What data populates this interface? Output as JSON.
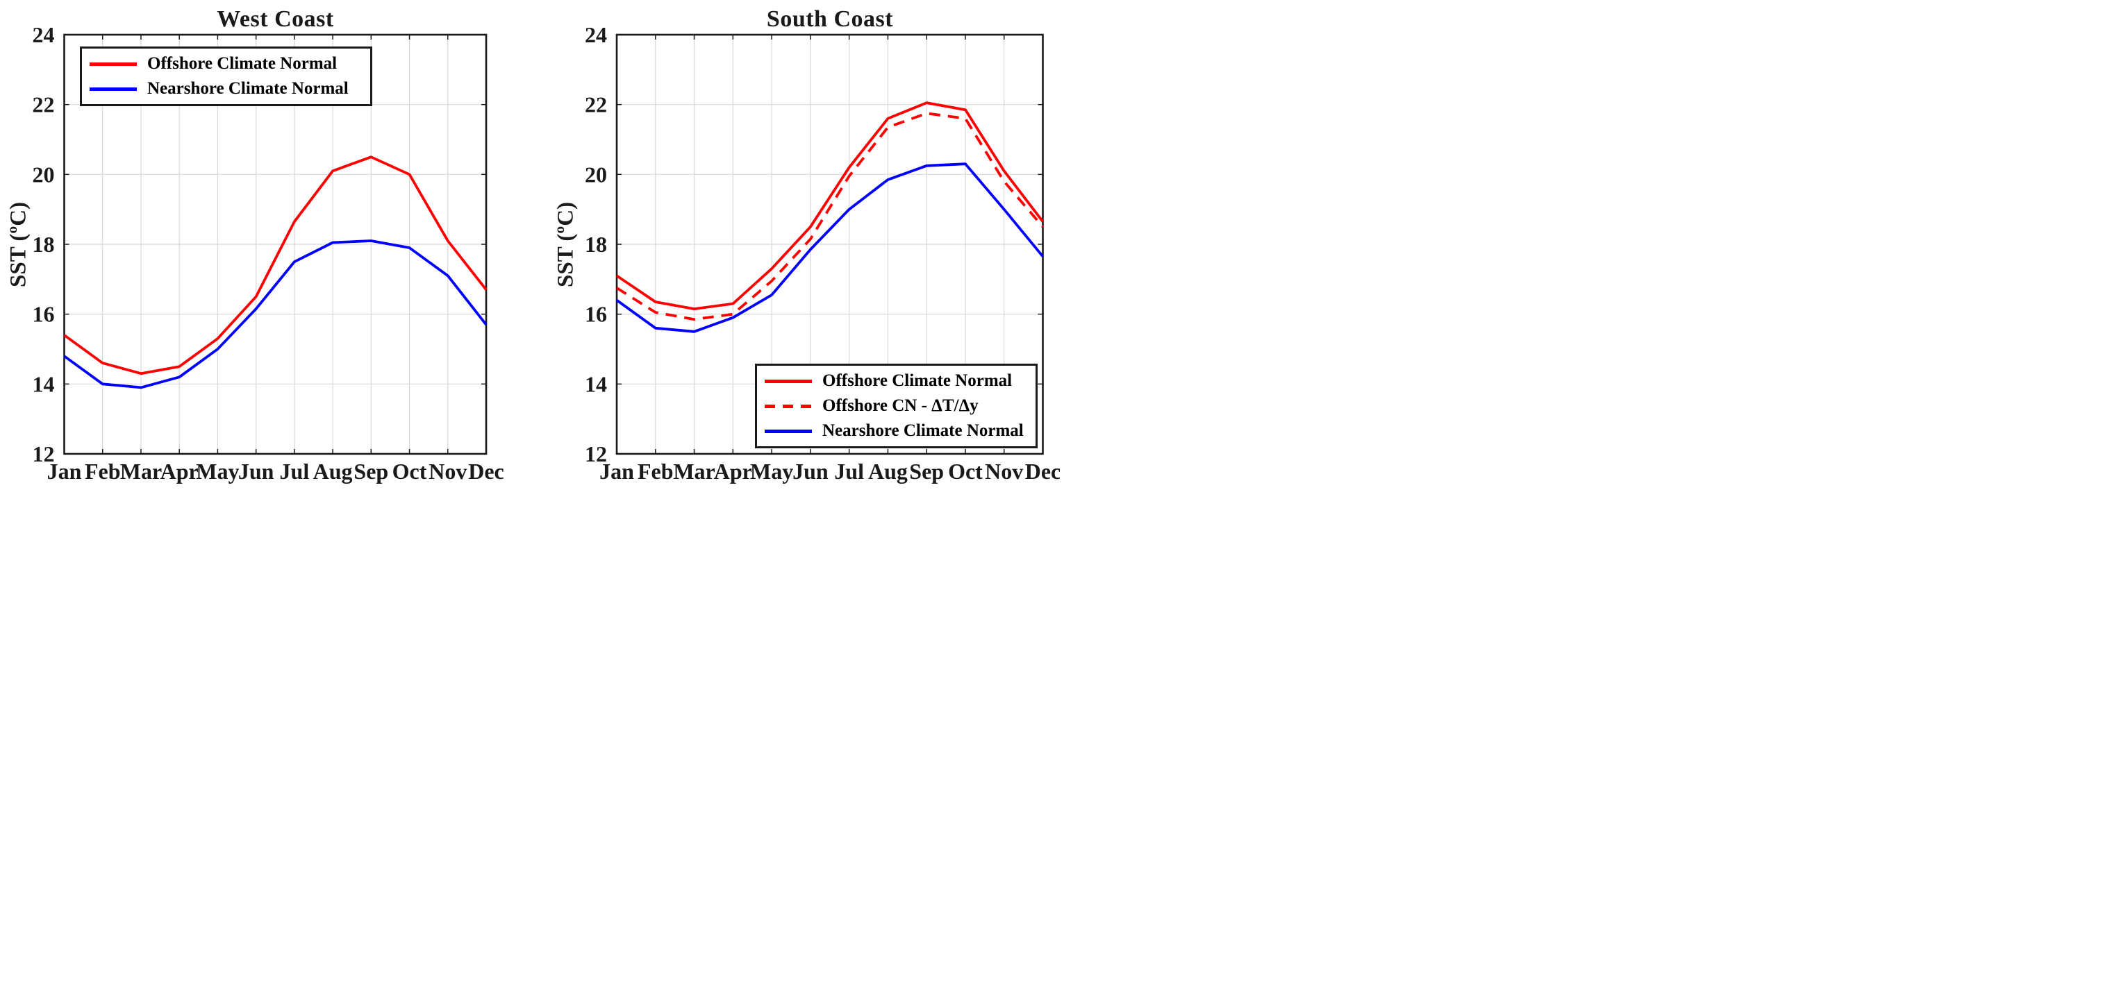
{
  "page": {
    "background": "#ffffff"
  },
  "styles": {
    "axis_color": "#1a1a1a",
    "grid_color": "#d8d8d8",
    "offshore_red": "#ff0000",
    "nearshore_blue": "#0000ff"
  },
  "chart_data": [
    {
      "type": "line",
      "title": "West Coast",
      "xlabel": "",
      "ylabel": "SST (ºC)",
      "categories": [
        "Jan",
        "Feb",
        "Mar",
        "Apr",
        "May",
        "Jun",
        "Jul",
        "Aug",
        "Sep",
        "Oct",
        "Nov",
        "Dec"
      ],
      "ylim": [
        12,
        24
      ],
      "yticks": [
        12,
        14,
        16,
        18,
        20,
        22,
        24
      ],
      "grid": "on",
      "legend_position": "top-left",
      "series": [
        {
          "name": "Offshore Climate Normal",
          "color": "#ff0000",
          "style": "solid",
          "values": [
            15.4,
            14.6,
            14.3,
            14.5,
            15.3,
            16.5,
            18.65,
            20.1,
            20.5,
            20.0,
            18.1,
            16.7
          ]
        },
        {
          "name": "Nearshore Climate Normal",
          "color": "#0000ff",
          "style": "solid",
          "values": [
            14.8,
            14.0,
            13.9,
            14.2,
            15.0,
            16.15,
            17.5,
            18.05,
            18.1,
            17.9,
            17.1,
            15.7
          ]
        }
      ]
    },
    {
      "type": "line",
      "title": "South Coast",
      "xlabel": "",
      "ylabel": "SST (ºC)",
      "categories": [
        "Jan",
        "Feb",
        "Mar",
        "Apr",
        "May",
        "Jun",
        "Jul",
        "Aug",
        "Sep",
        "Oct",
        "Nov",
        "Dec"
      ],
      "ylim": [
        12,
        24
      ],
      "yticks": [
        12,
        14,
        16,
        18,
        20,
        22,
        24
      ],
      "grid": "on",
      "legend_position": "bottom-right",
      "series": [
        {
          "name": "Offshore Climate Normal",
          "color": "#ff0000",
          "style": "solid",
          "values": [
            17.1,
            16.35,
            16.15,
            16.3,
            17.3,
            18.5,
            20.2,
            21.6,
            22.05,
            21.85,
            20.1,
            18.65
          ]
        },
        {
          "name": "Offshore CN - ΔT/Δy",
          "color": "#ff0000",
          "style": "dashed",
          "values": [
            16.75,
            16.05,
            15.85,
            16.0,
            16.95,
            18.15,
            19.95,
            21.35,
            21.75,
            21.6,
            19.8,
            18.5
          ]
        },
        {
          "name": "Nearshore Climate Normal",
          "color": "#0000ff",
          "style": "solid",
          "values": [
            16.4,
            15.6,
            15.5,
            15.9,
            16.55,
            17.85,
            19.0,
            19.85,
            20.25,
            20.3,
            19.0,
            17.65
          ]
        }
      ]
    }
  ]
}
